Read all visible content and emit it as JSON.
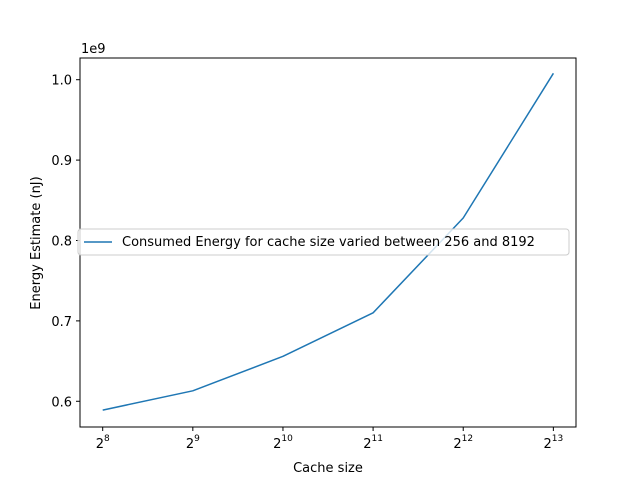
{
  "chart_data": {
    "type": "line",
    "title": "",
    "xlabel": "Cache size",
    "ylabel": "Energy Estimate (nJ)",
    "x_scale": "log2",
    "y_offset_label": "1e9",
    "x": [
      256,
      512,
      1024,
      2048,
      4096,
      8192
    ],
    "x_ticks": [
      {
        "value": 256,
        "base": "2",
        "exp": "8"
      },
      {
        "value": 512,
        "base": "2",
        "exp": "9"
      },
      {
        "value": 1024,
        "base": "2",
        "exp": "10"
      },
      {
        "value": 2048,
        "base": "2",
        "exp": "11"
      },
      {
        "value": 4096,
        "base": "2",
        "exp": "12"
      },
      {
        "value": 8192,
        "base": "2",
        "exp": "13"
      }
    ],
    "y_ticks": [
      {
        "value": 0.6,
        "label": "0.6"
      },
      {
        "value": 0.7,
        "label": "0.7"
      },
      {
        "value": 0.8,
        "label": "0.8"
      },
      {
        "value": 0.9,
        "label": "0.9"
      },
      {
        "value": 1.0,
        "label": "1.0"
      }
    ],
    "xlim": [
      215,
      9750
    ],
    "ylim": [
      0.568,
      1.027
    ],
    "series": [
      {
        "name": "Consumed Energy for cache size varied between 256 and 8192",
        "color": "#1f77b4",
        "values": [
          0.589,
          0.613,
          0.656,
          0.71,
          0.828,
          1.008
        ]
      }
    ],
    "legend": "center-right",
    "grid": false
  }
}
